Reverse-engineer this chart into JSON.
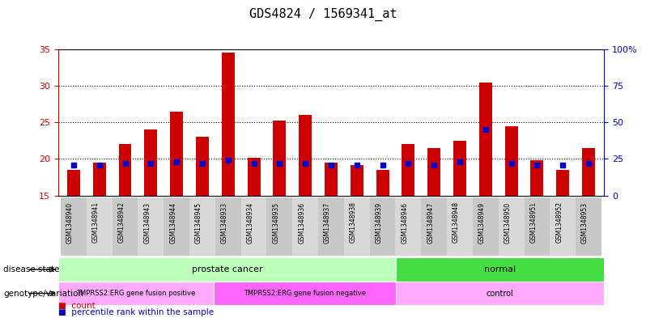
{
  "title": "GDS4824 / 1569341_at",
  "samples": [
    "GSM1348940",
    "GSM1348941",
    "GSM1348942",
    "GSM1348943",
    "GSM1348944",
    "GSM1348945",
    "GSM1348933",
    "GSM1348934",
    "GSM1348935",
    "GSM1348936",
    "GSM1348937",
    "GSM1348938",
    "GSM1348939",
    "GSM1348946",
    "GSM1348947",
    "GSM1348948",
    "GSM1348949",
    "GSM1348950",
    "GSM1348951",
    "GSM1348952",
    "GSM1348953"
  ],
  "counts": [
    18.5,
    19.5,
    22.0,
    24.0,
    26.5,
    23.0,
    34.5,
    20.2,
    25.3,
    26.0,
    19.5,
    19.2,
    18.5,
    22.0,
    21.5,
    22.5,
    30.5,
    24.5,
    19.8,
    18.5,
    21.5
  ],
  "percentiles": [
    21,
    21,
    22,
    22,
    23,
    22,
    24,
    22,
    22,
    22,
    21,
    21,
    21,
    22,
    21,
    23,
    45,
    22,
    21,
    21,
    22
  ],
  "ylim_left": [
    15,
    35
  ],
  "ylim_right": [
    0,
    100
  ],
  "yticks_left": [
    15,
    20,
    25,
    30,
    35
  ],
  "yticks_right": [
    0,
    25,
    50,
    75,
    100
  ],
  "bar_color": "#cc0000",
  "dot_color": "#0000cc",
  "disease_state_groups": [
    {
      "label": "prostate cancer",
      "start": 0,
      "end": 13,
      "color": "#bbffbb"
    },
    {
      "label": "normal",
      "start": 13,
      "end": 21,
      "color": "#44dd44"
    }
  ],
  "genotype_groups": [
    {
      "label": "TMPRSS2:ERG gene fusion positive",
      "start": 0,
      "end": 6,
      "color": "#ffaaff"
    },
    {
      "label": "TMPRSS2:ERG gene fusion negative",
      "start": 6,
      "end": 13,
      "color": "#ff66ff"
    },
    {
      "label": "control",
      "start": 13,
      "end": 21,
      "color": "#ffaaff"
    }
  ],
  "disease_state_label": "disease state",
  "genotype_label": "genotype/variation",
  "legend_count": "count",
  "legend_percentile": "percentile rank within the sample",
  "background_color": "#ffffff",
  "left_axis_color": "#cc0000",
  "right_axis_color": "#0000cc"
}
